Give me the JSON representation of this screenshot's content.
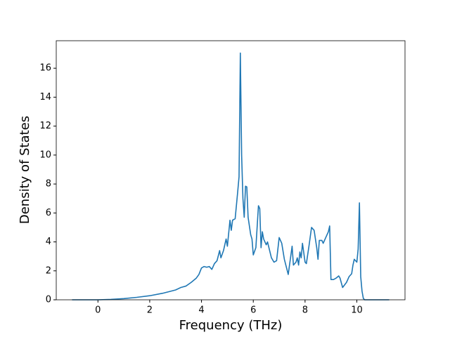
{
  "chart_data": {
    "type": "line",
    "xlabel": "Frequency (THz)",
    "ylabel": "Density of States",
    "x": [
      -1.0,
      0,
      0.5,
      1,
      1.5,
      2,
      2.5,
      3,
      3.2,
      3.4,
      3.6,
      3.8,
      3.9,
      4.0,
      4.1,
      4.2,
      4.3,
      4.4,
      4.5,
      4.6,
      4.7,
      4.75,
      4.85,
      4.95,
      5.0,
      5.1,
      5.15,
      5.2,
      5.3,
      5.4,
      5.45,
      5.5,
      5.55,
      5.6,
      5.65,
      5.7,
      5.75,
      5.8,
      5.9,
      5.95,
      6.0,
      6.1,
      6.2,
      6.25,
      6.3,
      6.35,
      6.4,
      6.5,
      6.55,
      6.7,
      6.8,
      6.9,
      7.0,
      7.1,
      7.2,
      7.3,
      7.35,
      7.5,
      7.55,
      7.65,
      7.7,
      7.75,
      7.8,
      7.85,
      7.9,
      8.0,
      8.05,
      8.15,
      8.25,
      8.35,
      8.45,
      8.5,
      8.55,
      8.65,
      8.7,
      8.8,
      8.9,
      8.95,
      9.0,
      9.1,
      9.2,
      9.3,
      9.35,
      9.45,
      9.6,
      9.7,
      9.8,
      9.85,
      9.9,
      10.0,
      10.05,
      10.1,
      10.15,
      10.2,
      10.25,
      10.3,
      11.25
    ],
    "values": [
      0,
      0,
      0.03,
      0.08,
      0.17,
      0.28,
      0.45,
      0.68,
      0.85,
      0.95,
      1.2,
      1.5,
      1.75,
      2.2,
      2.3,
      2.25,
      2.3,
      2.1,
      2.5,
      2.7,
      3.4,
      2.9,
      3.4,
      4.2,
      3.7,
      5.5,
      4.8,
      5.5,
      5.6,
      7.5,
      8.5,
      17.05,
      10,
      7,
      5.7,
      7.85,
      7.8,
      5.7,
      4.5,
      4.2,
      3.1,
      3.6,
      6.5,
      6.3,
      3.6,
      4.7,
      4.2,
      3.8,
      4.0,
      2.9,
      2.6,
      2.7,
      4.3,
      3.9,
      2.8,
      2.1,
      1.75,
      3.7,
      2.4,
      2.6,
      2.9,
      2.4,
      3.3,
      2.9,
      3.9,
      2.6,
      2.5,
      3.7,
      5.0,
      4.8,
      3.6,
      2.8,
      4.1,
      4.1,
      3.9,
      4.3,
      4.7,
      5.1,
      1.4,
      1.4,
      1.5,
      1.65,
      1.5,
      0.85,
      1.2,
      1.6,
      1.8,
      2.4,
      2.8,
      2.6,
      3.5,
      6.7,
      1.6,
      0.6,
      0.1,
      0,
      0
    ],
    "color": "#1f77b4",
    "xlim": [
      -1.61,
      11.86
    ],
    "xticks": [
      0,
      2,
      4,
      6,
      8,
      10
    ],
    "ylim": [
      0,
      17.9
    ],
    "yticks": [
      0,
      2,
      4,
      6,
      8,
      10,
      12,
      14,
      16
    ]
  }
}
